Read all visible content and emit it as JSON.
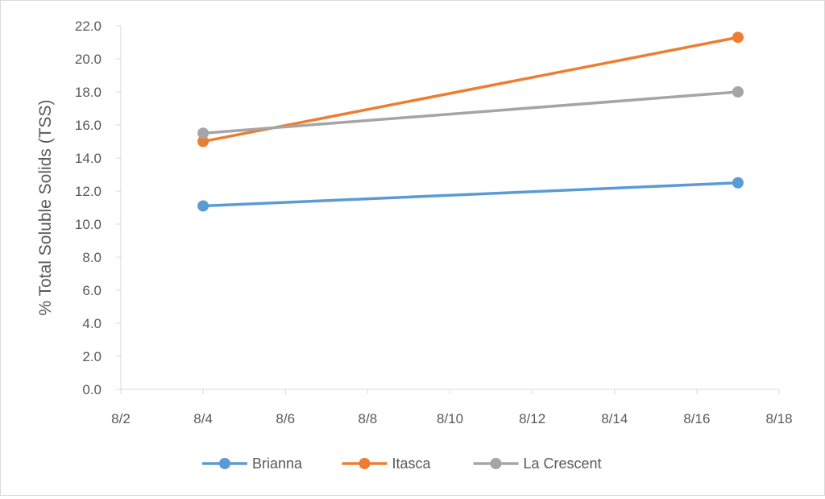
{
  "chart_data": {
    "type": "line",
    "title": "",
    "xlabel": "",
    "ylabel": "% Total Soluble Solids (TSS)",
    "x_ticks": [
      "8/2",
      "8/4",
      "8/6",
      "8/8",
      "8/10",
      "8/12",
      "8/14",
      "8/16",
      "8/18"
    ],
    "x_range": [
      "8/2",
      "8/18"
    ],
    "y_ticks": [
      "0.0",
      "2.0",
      "4.0",
      "6.0",
      "8.0",
      "10.0",
      "12.0",
      "14.0",
      "16.0",
      "18.0",
      "20.0",
      "22.0"
    ],
    "ylim": [
      0,
      22
    ],
    "grid": false,
    "legend_position": "bottom",
    "series": [
      {
        "name": "Brianna",
        "color": "#5b9bd5",
        "x": [
          "8/4",
          "8/17"
        ],
        "values": [
          11.1,
          12.5
        ]
      },
      {
        "name": "Itasca",
        "color": "#ed7d31",
        "x": [
          "8/4",
          "8/17"
        ],
        "values": [
          15.0,
          21.3
        ]
      },
      {
        "name": "La Crescent",
        "color": "#a5a5a5",
        "x": [
          "8/4",
          "8/17"
        ],
        "values": [
          15.5,
          18.0
        ]
      }
    ]
  }
}
